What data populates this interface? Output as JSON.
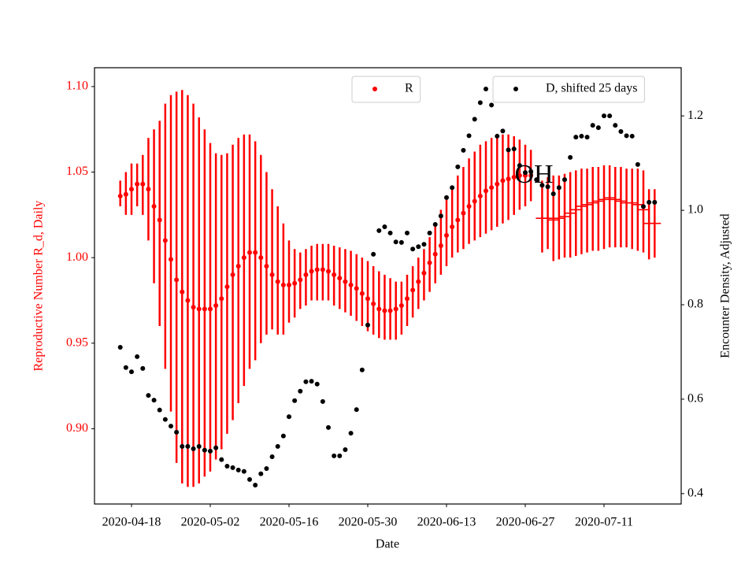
{
  "chart_data": {
    "type": "scatter",
    "annotation": "OH",
    "xlabel": "Date",
    "ylabel": "Reproductive Number R_d, Daily",
    "y2label": "Encounter Density, Adjusted",
    "ylabel_color": "#ff0000",
    "xlim": [
      "2020-04-11",
      "2020-07-25"
    ],
    "xticks": [
      "2020-04-18",
      "2020-05-02",
      "2020-05-16",
      "2020-05-30",
      "2020-06-13",
      "2020-06-27",
      "2020-07-11"
    ],
    "ylim": [
      0.856,
      1.111
    ],
    "yticks": [
      {
        "value": 0.9,
        "label": "0.90"
      },
      0.95,
      {
        "value": 1.0,
        "label": "1.00"
      },
      1.05,
      {
        "value": 1.1,
        "label": "1.10"
      }
    ],
    "y2lim": [
      0.378,
      1.302
    ],
    "y2ticks": [
      0.4,
      0.6,
      0.8,
      {
        "value": 1.0,
        "label": "1.0"
      },
      1.2
    ],
    "series": [
      {
        "name": "R",
        "color": "#ff0000",
        "marker": "o",
        "legend": "upper center",
        "x": [
          "2020-04-16",
          "2020-04-17",
          "2020-04-18",
          "2020-04-19",
          "2020-04-20",
          "2020-04-21",
          "2020-04-22",
          "2020-04-23",
          "2020-04-24",
          "2020-04-25",
          "2020-04-26",
          "2020-04-27",
          "2020-04-28",
          "2020-04-29",
          "2020-04-30",
          "2020-05-01",
          "2020-05-02",
          "2020-05-03",
          "2020-05-04",
          "2020-05-05",
          "2020-05-06",
          "2020-05-07",
          "2020-05-08",
          "2020-05-09",
          "2020-05-10",
          "2020-05-11",
          "2020-05-12",
          "2020-05-13",
          "2020-05-14",
          "2020-05-15",
          "2020-05-16",
          "2020-05-17",
          "2020-05-18",
          "2020-05-19",
          "2020-05-20",
          "2020-05-21",
          "2020-05-22",
          "2020-05-23",
          "2020-05-24",
          "2020-05-25",
          "2020-05-26",
          "2020-05-27",
          "2020-05-28",
          "2020-05-29",
          "2020-05-30",
          "2020-05-31",
          "2020-06-01",
          "2020-06-02",
          "2020-06-03",
          "2020-06-04",
          "2020-06-05",
          "2020-06-06",
          "2020-06-07",
          "2020-06-08",
          "2020-06-09",
          "2020-06-10",
          "2020-06-11",
          "2020-06-12",
          "2020-06-13",
          "2020-06-14",
          "2020-06-15",
          "2020-06-16",
          "2020-06-17",
          "2020-06-18",
          "2020-06-19",
          "2020-06-20",
          "2020-06-21",
          "2020-06-22",
          "2020-06-23",
          "2020-06-24",
          "2020-06-25",
          "2020-06-26",
          "2020-06-27",
          "2020-06-28"
        ],
        "values": [
          1.036,
          1.037,
          1.04,
          1.043,
          1.043,
          1.04,
          1.03,
          1.022,
          1.01,
          0.999,
          0.987,
          0.98,
          0.975,
          0.971,
          0.97,
          0.97,
          0.97,
          0.972,
          0.976,
          0.983,
          0.99,
          0.995,
          1.0,
          1.003,
          1.003,
          1.0,
          0.995,
          0.99,
          0.986,
          0.984,
          0.984,
          0.985,
          0.987,
          0.99,
          0.992,
          0.993,
          0.993,
          0.992,
          0.99,
          0.988,
          0.986,
          0.984,
          0.982,
          0.979,
          0.976,
          0.973,
          0.97,
          0.969,
          0.969,
          0.97,
          0.972,
          0.976,
          0.981,
          0.986,
          0.991,
          0.997,
          1.002,
          1.007,
          1.013,
          1.018,
          1.022,
          1.026,
          1.03,
          1.033,
          1.036,
          1.039,
          1.041,
          1.043,
          1.045,
          1.046,
          1.047,
          1.048,
          1.048,
          1.048
        ],
        "lower": [
          1.03,
          1.025,
          1.025,
          1.03,
          1.025,
          1.01,
          0.985,
          0.96,
          0.935,
          0.91,
          0.88,
          0.868,
          0.866,
          0.866,
          0.868,
          0.872,
          0.875,
          0.882,
          0.888,
          0.897,
          0.905,
          0.915,
          0.925,
          0.935,
          0.94,
          0.95,
          0.955,
          0.958,
          0.955,
          0.955,
          0.962,
          0.965,
          0.97,
          0.972,
          0.975,
          0.975,
          0.975,
          0.975,
          0.972,
          0.97,
          0.968,
          0.966,
          0.963,
          0.96,
          0.957,
          0.955,
          0.953,
          0.952,
          0.952,
          0.952,
          0.955,
          0.96,
          0.965,
          0.97,
          0.975,
          0.98,
          0.985,
          0.99,
          0.995,
          1.0,
          1.003,
          1.005,
          1.008,
          1.01,
          1.012,
          1.014,
          1.016,
          1.018,
          1.02,
          1.022,
          1.025,
          1.028,
          1.03,
          1.033
        ],
        "upper": [
          1.045,
          1.05,
          1.055,
          1.055,
          1.06,
          1.07,
          1.075,
          1.08,
          1.09,
          1.095,
          1.097,
          1.098,
          1.095,
          1.09,
          1.082,
          1.075,
          1.067,
          1.061,
          1.06,
          1.061,
          1.066,
          1.07,
          1.072,
          1.072,
          1.068,
          1.06,
          1.05,
          1.04,
          1.03,
          1.02,
          1.01,
          1.005,
          1.003,
          1.005,
          1.007,
          1.008,
          1.008,
          1.008,
          1.007,
          1.006,
          1.005,
          1.004,
          1.002,
          1.0,
          0.998,
          0.995,
          0.992,
          0.99,
          0.988,
          0.986,
          0.986,
          0.99,
          0.995,
          1.0,
          1.005,
          1.012,
          1.02,
          1.028,
          1.035,
          1.042,
          1.048,
          1.053,
          1.058,
          1.062,
          1.066,
          1.068,
          1.07,
          1.071,
          1.072,
          1.072,
          1.071,
          1.069,
          1.066,
          1.063
        ]
      },
      {
        "color": "#ff0000",
        "marker": "_",
        "x": [
          "2020-06-30",
          "2020-07-01",
          "2020-07-02",
          "2020-07-03",
          "2020-07-04",
          "2020-07-05",
          "2020-07-06",
          "2020-07-07",
          "2020-07-08",
          "2020-07-09",
          "2020-07-10",
          "2020-07-11",
          "2020-07-12",
          "2020-07-13",
          "2020-07-14",
          "2020-07-15",
          "2020-07-16",
          "2020-07-17",
          "2020-07-18",
          "2020-07-19",
          "2020-07-20"
        ],
        "values": [
          1.023,
          1.023,
          1.022,
          1.023,
          1.024,
          1.026,
          1.028,
          1.03,
          1.031,
          1.032,
          1.033,
          1.034,
          1.035,
          1.034,
          1.033,
          1.032,
          1.032,
          1.031,
          1.028,
          1.02,
          1.02
        ],
        "lower": [
          1.003,
          1.005,
          0.998,
          0.999,
          1.0,
          1.0,
          1.001,
          1.002,
          1.003,
          1.004,
          1.004,
          1.005,
          1.006,
          1.006,
          1.006,
          1.006,
          1.005,
          1.004,
          1.003,
          0.999,
          1.0
        ],
        "upper": [
          1.045,
          1.047,
          1.048,
          1.048,
          1.049,
          1.05,
          1.051,
          1.052,
          1.052,
          1.053,
          1.053,
          1.054,
          1.054,
          1.053,
          1.053,
          1.052,
          1.052,
          1.052,
          1.051,
          1.04,
          1.04
        ]
      },
      {
        "name": "D, shifted 25 days",
        "color": "#000000",
        "marker": "o",
        "axis": "y2",
        "legend": "upper right",
        "x": [
          "2020-04-16",
          "2020-04-17",
          "2020-04-18",
          "2020-04-19",
          "2020-04-20",
          "2020-04-21",
          "2020-04-22",
          "2020-04-23",
          "2020-04-24",
          "2020-04-25",
          "2020-04-26",
          "2020-04-27",
          "2020-04-28",
          "2020-04-29",
          "2020-04-30",
          "2020-05-01",
          "2020-05-02",
          "2020-05-03",
          "2020-05-04",
          "2020-05-05",
          "2020-05-06",
          "2020-05-07",
          "2020-05-08",
          "2020-05-09",
          "2020-05-10",
          "2020-05-11",
          "2020-05-12",
          "2020-05-13",
          "2020-05-14",
          "2020-05-15",
          "2020-05-16",
          "2020-05-17",
          "2020-05-18",
          "2020-05-19",
          "2020-05-20",
          "2020-05-21",
          "2020-05-22",
          "2020-05-23",
          "2020-05-24",
          "2020-05-25",
          "2020-05-26",
          "2020-05-27",
          "2020-05-28",
          "2020-05-29",
          "2020-05-30",
          "2020-05-31",
          "2020-06-01",
          "2020-06-02",
          "2020-06-03",
          "2020-06-04",
          "2020-06-05",
          "2020-06-06",
          "2020-06-07",
          "2020-06-08",
          "2020-06-09",
          "2020-06-10",
          "2020-06-11",
          "2020-06-12",
          "2020-06-13",
          "2020-06-14",
          "2020-06-15",
          "2020-06-16",
          "2020-06-17",
          "2020-06-18",
          "2020-06-19",
          "2020-06-20",
          "2020-06-21",
          "2020-06-22",
          "2020-06-23",
          "2020-06-24",
          "2020-06-25",
          "2020-06-26",
          "2020-06-27",
          "2020-06-28",
          "2020-06-29",
          "2020-06-30",
          "2020-07-01",
          "2020-07-02",
          "2020-07-03",
          "2020-07-04",
          "2020-07-05",
          "2020-07-06",
          "2020-07-07",
          "2020-07-08",
          "2020-07-09",
          "2020-07-10",
          "2020-07-11",
          "2020-07-12",
          "2020-07-13",
          "2020-07-14",
          "2020-07-15",
          "2020-07-16",
          "2020-07-17",
          "2020-07-18",
          "2020-07-19",
          "2020-07-20"
        ],
        "values": [
          0.71,
          0.667,
          0.658,
          0.69,
          0.665,
          0.608,
          0.598,
          0.577,
          0.557,
          0.543,
          0.53,
          0.5,
          0.5,
          0.495,
          0.5,
          0.492,
          0.49,
          0.497,
          0.472,
          0.458,
          0.455,
          0.45,
          0.447,
          0.43,
          0.418,
          0.442,
          0.453,
          0.478,
          0.5,
          0.522,
          0.563,
          0.597,
          0.617,
          0.637,
          0.638,
          0.632,
          0.595,
          0.54,
          0.48,
          0.48,
          0.493,
          0.528,
          0.578,
          0.662,
          0.757,
          0.907,
          0.957,
          0.965,
          0.952,
          0.933,
          0.932,
          0.952,
          0.918,
          0.923,
          0.928,
          0.952,
          0.97,
          0.988,
          1.027,
          1.048,
          1.092,
          1.127,
          1.158,
          1.193,
          1.228,
          1.257,
          1.223,
          1.157,
          1.168,
          1.128,
          1.13,
          1.095,
          1.08,
          1.082,
          1.065,
          1.053,
          1.05,
          1.035,
          1.048,
          1.065,
          1.112,
          1.155,
          1.157,
          1.155,
          1.18,
          1.175,
          1.2,
          1.2,
          1.18,
          1.167,
          1.158,
          1.157,
          1.097,
          1.008,
          1.017,
          1.017
        ]
      }
    ]
  }
}
